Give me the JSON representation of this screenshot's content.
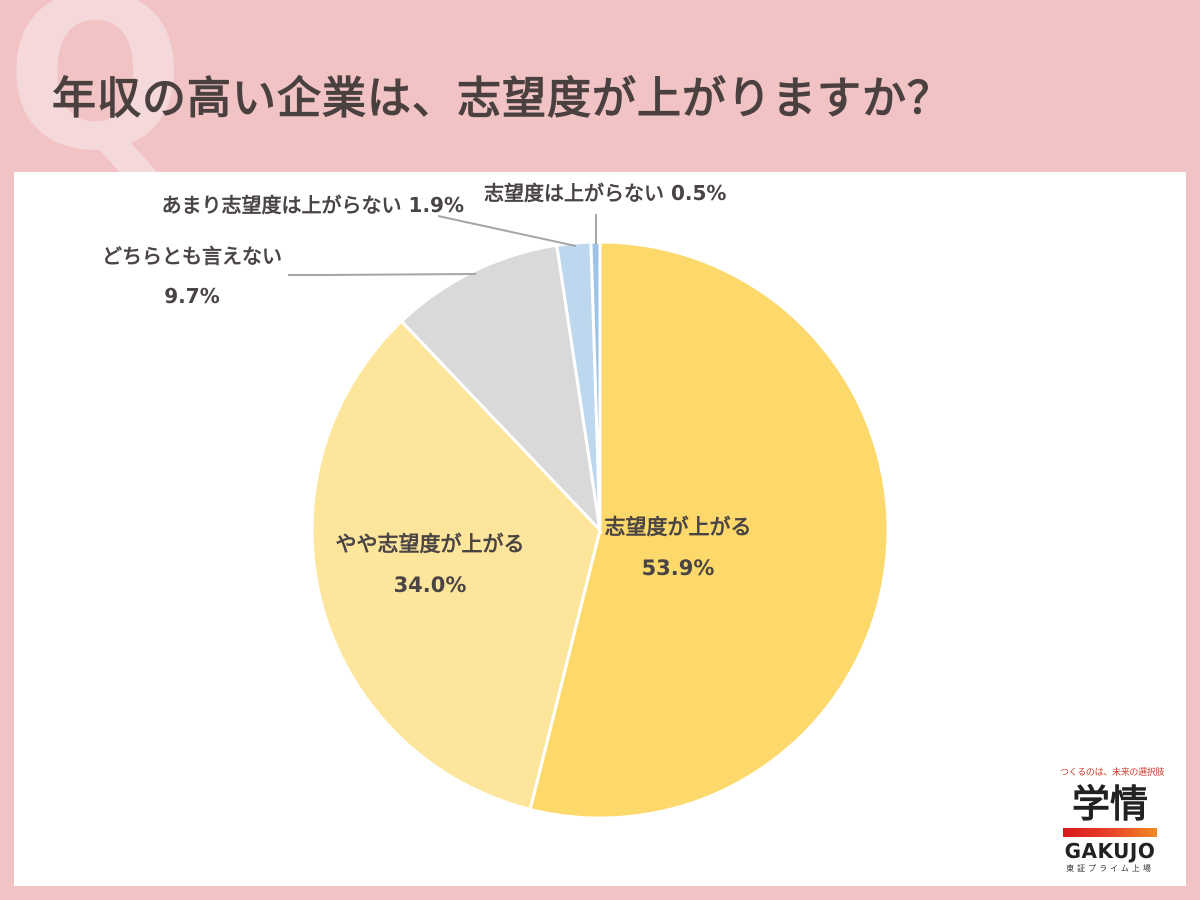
{
  "title": "年収の高い企業は、志望度が上がりますか？",
  "watermark": "Q",
  "chart_data": {
    "type": "pie",
    "start": "top, clockwise",
    "slices": [
      {
        "label": "志望度が上がる",
        "value": 53.9,
        "value_label": "53.9%",
        "color": "#fdd96b"
      },
      {
        "label": "やや志望度が上がる",
        "value": 34.0,
        "value_label": "34.0%",
        "color": "#fde59b"
      },
      {
        "label": "どちらとも言えない",
        "value": 9.7,
        "value_label": "9.7%",
        "color": "#d9d9d9"
      },
      {
        "label": "あまり志望度は上がらない",
        "value": 1.9,
        "value_label": "1.9%",
        "color": "#bdd7ee"
      },
      {
        "label": "志望度は上がらない",
        "value": 0.5,
        "value_label": "0.5%",
        "color": "#9dc3e6"
      }
    ]
  },
  "logo": {
    "tagline": "つくるのは、未来の選択肢",
    "mark": "学情",
    "name_en": "GAKUJO",
    "sub": "東証プライム上場"
  }
}
